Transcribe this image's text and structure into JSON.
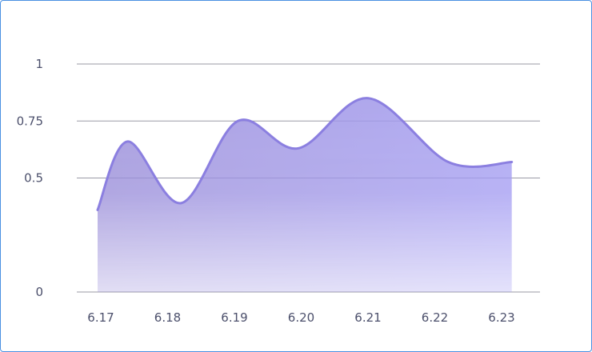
{
  "chart_data": {
    "type": "area",
    "x": [
      "6.17",
      "6.18",
      "6.19",
      "6.20",
      "6.21",
      "6.22",
      "6.23"
    ],
    "series": [
      {
        "values": [
          [
            0.0,
            0.36
          ],
          [
            0.45,
            0.66
          ],
          [
            1.25,
            0.39
          ],
          [
            2.1,
            0.75
          ],
          [
            3.0,
            0.63
          ],
          [
            4.05,
            0.85
          ],
          [
            5.25,
            0.57
          ],
          [
            6.2,
            0.57
          ]
        ]
      }
    ],
    "yticks": [
      {
        "value": 0,
        "label": "0"
      },
      {
        "value": 0.5,
        "label": "0.5"
      },
      {
        "value": 0.75,
        "label": "0.75"
      },
      {
        "value": 1,
        "label": "1"
      }
    ],
    "ylim": [
      0,
      1
    ],
    "title": "",
    "xlabel": "",
    "ylabel": "",
    "grid": true,
    "colors": {
      "line": "#8b7fe0",
      "fill_top_left": "#9b8fd9",
      "fill_top_right": "#a59ef2",
      "fill_bottom": "#ffffff",
      "grid": "#9a9aa6",
      "border": "#4a90e2"
    }
  }
}
